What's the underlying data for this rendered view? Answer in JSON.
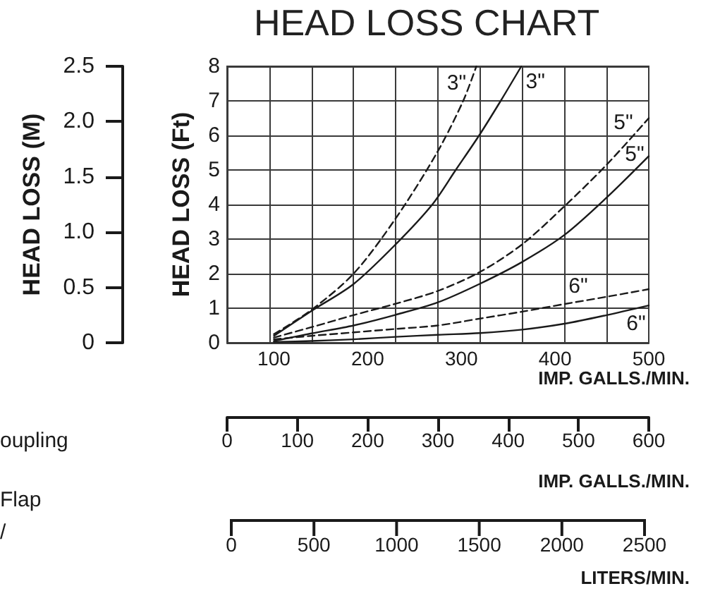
{
  "chart_data": {
    "type": "line",
    "title": "HEAD LOSS CHART",
    "xlabel": "IMP. GALLS./MIN.",
    "ylabel": "HEAD LOSS (Ft)",
    "y2label": "HEAD LOSS (M)",
    "x2label": "IMP. GALLS./MIN.",
    "xlim": [
      50,
      500
    ],
    "xticks": [
      {
        "value": 95,
        "label": null
      },
      100,
      {
        "value": 140,
        "label": null
      },
      {
        "value": 185,
        "label": null
      },
      200,
      {
        "value": 230,
        "label": null
      },
      {
        "value": 275,
        "label": null
      },
      300,
      {
        "value": 320,
        "label": null
      },
      {
        "value": 365,
        "label": null
      },
      400,
      {
        "value": 410,
        "label": null
      },
      {
        "value": 455,
        "label": null
      },
      500
    ],
    "ylim": [
      0,
      8
    ],
    "yticks": [
      0,
      1,
      2,
      3,
      4,
      5,
      6,
      7,
      8
    ],
    "y2lim": [
      0,
      2.5
    ],
    "y2ticks": [
      0,
      0.5,
      {
        "value": 1,
        "label": "1.0"
      },
      1.5,
      {
        "value": 2,
        "label": "2.0"
      },
      2.5
    ],
    "x2lim": [
      0,
      600
    ],
    "x2ticks": [
      0,
      100,
      200,
      300,
      400,
      500,
      600
    ],
    "grid": true,
    "marker": "none",
    "series": [
      {
        "name": "3\"",
        "color": "#1a1a1a",
        "line_style": "dashed",
        "x": [
          100,
          140,
          185,
          230,
          274,
          302,
          316
        ],
        "values": [
          0.25,
          0.95,
          2.0,
          3.6,
          5.5,
          7.0,
          8.0
        ]
      },
      {
        "name": "3\"",
        "color": "#1a1a1a",
        "line_style": "solid",
        "x": [
          100,
          140,
          185,
          230,
          269,
          294,
          319,
          342,
          364
        ],
        "values": [
          0.2,
          0.92,
          1.7,
          2.85,
          4.0,
          5.0,
          6.0,
          7.0,
          8.0
        ]
      },
      {
        "name": "5\"",
        "color": "#1a1a1a",
        "line_style": "dashed",
        "x": [
          100,
          140,
          185,
          230,
          275,
          320,
          365,
          410,
          455,
          500
        ],
        "values": [
          0.15,
          0.45,
          0.8,
          1.13,
          1.5,
          2.05,
          2.85,
          3.95,
          5.15,
          6.5
        ]
      },
      {
        "name": "5\"",
        "color": "#1a1a1a",
        "line_style": "solid",
        "x": [
          100,
          140,
          185,
          230,
          275,
          320,
          365,
          410,
          455,
          500
        ],
        "values": [
          0.05,
          0.27,
          0.5,
          0.81,
          1.17,
          1.71,
          2.34,
          3.12,
          4.2,
          5.4
        ]
      },
      {
        "name": "6\"",
        "color": "#1a1a1a",
        "line_style": "dashed",
        "x": [
          100,
          140,
          185,
          230,
          275,
          320,
          365,
          410,
          455,
          500
        ],
        "values": [
          0.1,
          0.2,
          0.3,
          0.4,
          0.5,
          0.7,
          0.9,
          1.12,
          1.33,
          1.55
        ]
      },
      {
        "name": "6\"",
        "color": "#1a1a1a",
        "line_style": "solid",
        "x": [
          100,
          140,
          185,
          230,
          275,
          320,
          365,
          410,
          455,
          500
        ],
        "values": [
          0.02,
          0.05,
          0.1,
          0.17,
          0.23,
          0.28,
          0.38,
          0.55,
          0.8,
          1.08
        ]
      }
    ],
    "annotations": [
      "oupling",
      "Flap",
      "/",
      "0",
      "500",
      "1000",
      "1500",
      "2000",
      "2500",
      "LITERS/MIN."
    ]
  }
}
